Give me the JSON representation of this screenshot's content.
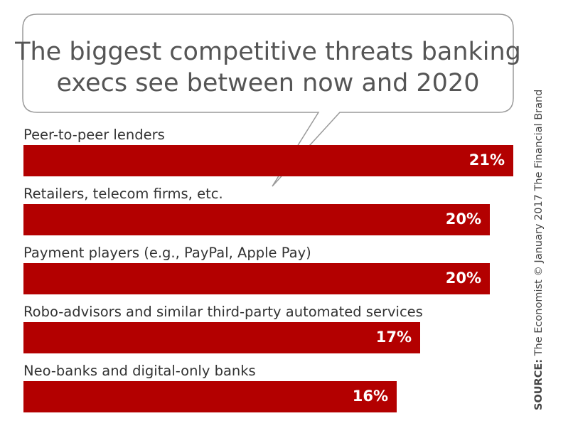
{
  "chart_data": {
    "type": "bar",
    "orientation": "horizontal",
    "title_lines": [
      "The biggest competitive threats banking",
      "execs see between now and 2020"
    ],
    "categories": [
      "Peer-to-peer lenders",
      "Retailers, telecom firms, etc.",
      "Payment players (e.g., PayPal, Apple Pay)",
      "Robo-advisors and similar third-party automated services",
      "Neo-banks and digital-only banks"
    ],
    "values": [
      21,
      20,
      20,
      17,
      16
    ],
    "value_labels": [
      "21%",
      "20%",
      "20%",
      "17%",
      "16%"
    ],
    "xlim": [
      0,
      21
    ],
    "bar_color": "#b30000",
    "grid": false,
    "legend": "none"
  },
  "source": {
    "label": "SOURCE:",
    "text": "The Economist © January 2017 The Financial Brand"
  }
}
